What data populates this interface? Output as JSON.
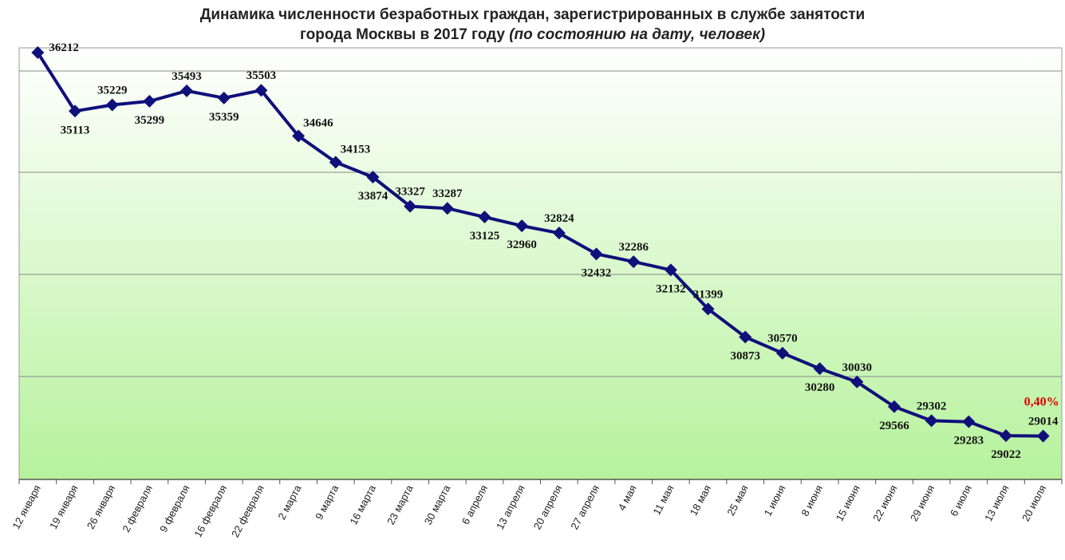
{
  "chart_data": {
    "type": "line",
    "title_line1": "Динамика численности безработных граждан, зарегистрированных в службе занятости",
    "title_line2_main": "города Москвы в 2017 году",
    "title_line2_italic": "(по состоянию на дату, человек)",
    "categories": [
      "12 января",
      "19 января",
      "26 января",
      "2 февраля",
      "9 февраля",
      "16 февраля",
      "22 февраля",
      "2 марта",
      "9 марта",
      "16 марта",
      "23 марта",
      "30 марта",
      "6 апреля",
      "13 апреля",
      "20 апреля",
      "27 апреля",
      "4 мая",
      "11 мая",
      "18 мая",
      "25 мая",
      "1 июня",
      "8 июня",
      "15 июня",
      "22 июня",
      "29 июня",
      "6 июля",
      "13 июля",
      "20 июля"
    ],
    "series": [
      {
        "values": [
          36212,
          35113,
          35229,
          35299,
          35493,
          35359,
          35503,
          34646,
          34153,
          33874,
          33327,
          33287,
          33125,
          32960,
          32824,
          32432,
          32286,
          32132,
          31399,
          30873,
          30570,
          30280,
          30030,
          29566,
          29302,
          29283,
          29022,
          29014
        ]
      }
    ],
    "ylim": [
      28200,
      36300
    ],
    "grid": true,
    "annotation": "0,40%",
    "colors": {
      "line": "#10107a",
      "annotation": "#e00000",
      "grid": "#8a8a8a",
      "bg_top": "#ffffff",
      "bg_bottom": "#b6f29c"
    }
  }
}
